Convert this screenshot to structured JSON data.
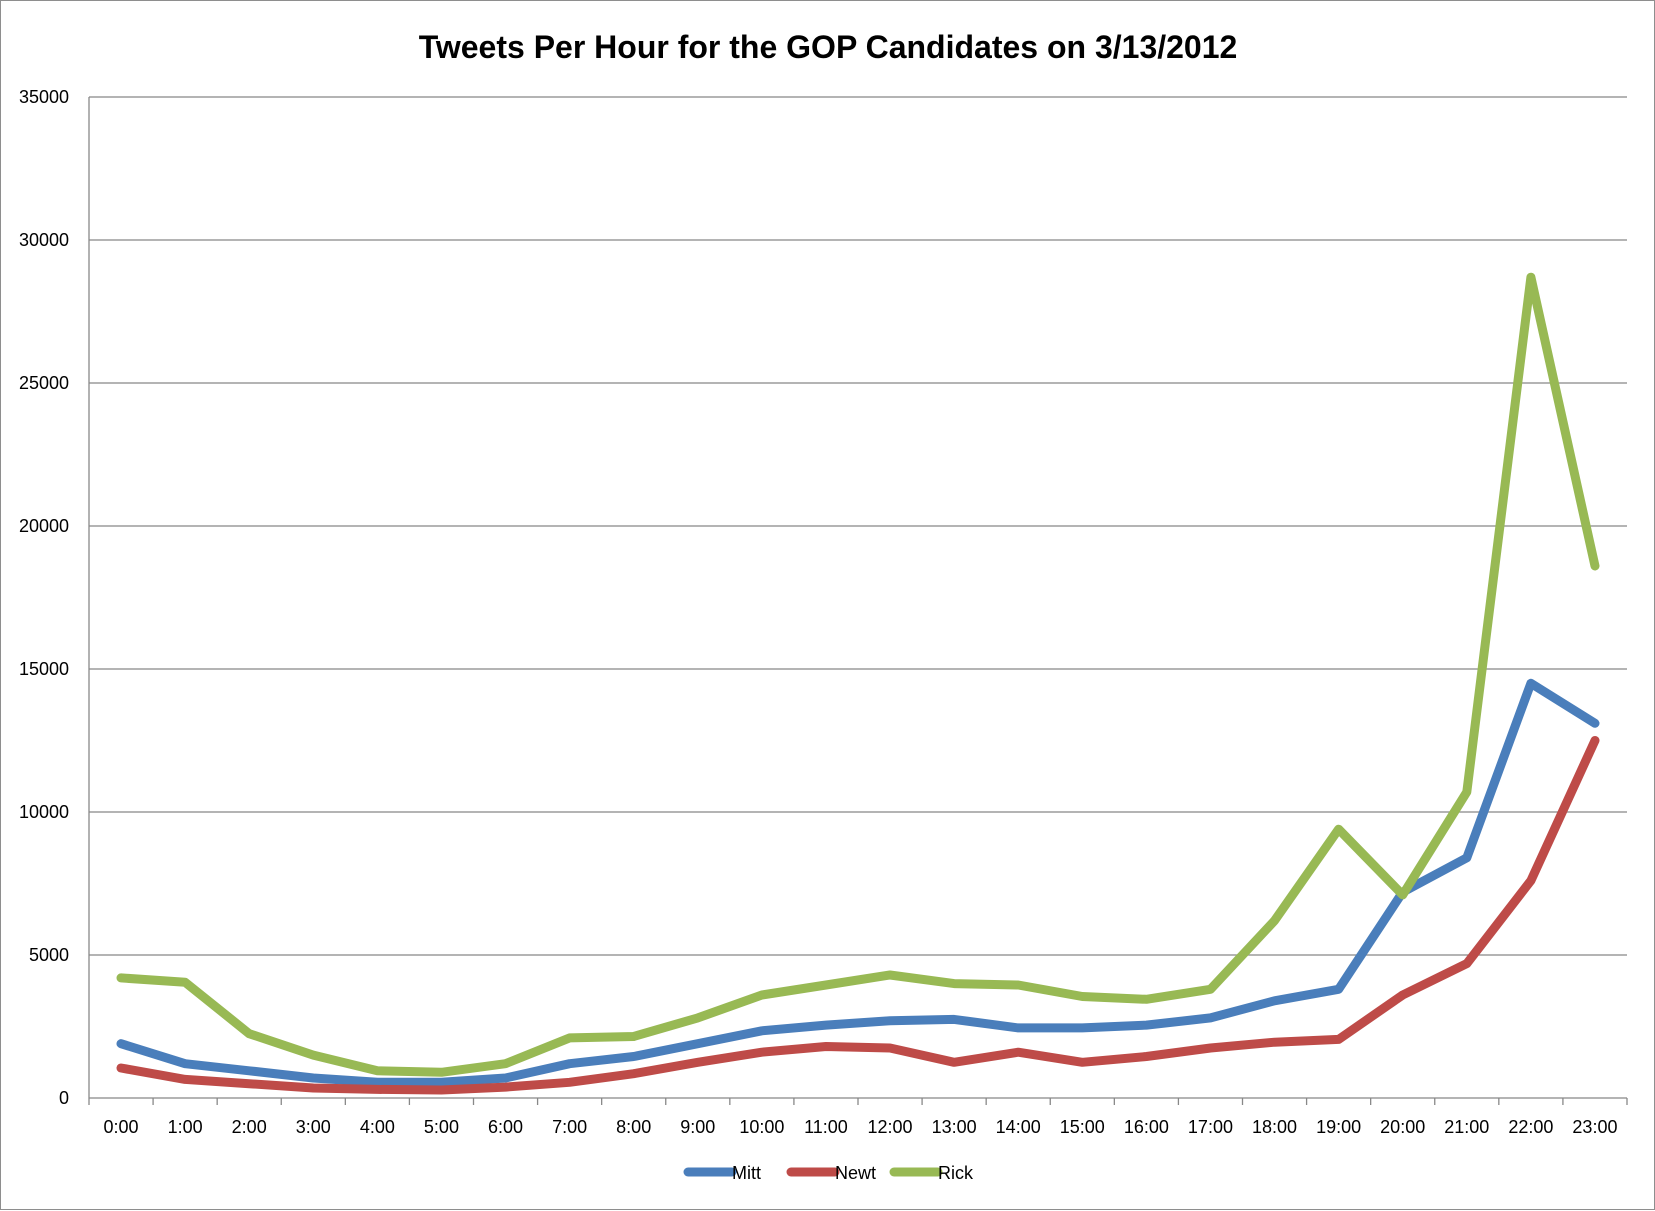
{
  "chart_data": {
    "type": "line",
    "title": "Tweets Per Hour for the GOP Candidates on 3/13/2012",
    "xlabel": "",
    "ylabel": "",
    "categories": [
      "0:00",
      "1:00",
      "2:00",
      "3:00",
      "4:00",
      "5:00",
      "6:00",
      "7:00",
      "8:00",
      "9:00",
      "10:00",
      "11:00",
      "12:00",
      "13:00",
      "14:00",
      "15:00",
      "16:00",
      "17:00",
      "18:00",
      "19:00",
      "20:00",
      "21:00",
      "22:00",
      "23:00"
    ],
    "ylim": [
      0,
      35000
    ],
    "yticks": [
      0,
      5000,
      10000,
      15000,
      20000,
      25000,
      30000,
      35000
    ],
    "grid": true,
    "legend_position": "bottom",
    "series": [
      {
        "name": "Mitt",
        "color": "#4a7ebb",
        "values": [
          1900,
          1200,
          950,
          700,
          550,
          550,
          700,
          1200,
          1450,
          1900,
          2350,
          2550,
          2700,
          2750,
          2450,
          2450,
          2550,
          2800,
          3400,
          3800,
          7200,
          8400,
          14500,
          13100
        ]
      },
      {
        "name": "Newt",
        "color": "#be4b48",
        "values": [
          1050,
          650,
          500,
          350,
          300,
          280,
          380,
          550,
          850,
          1250,
          1600,
          1800,
          1750,
          1250,
          1600,
          1250,
          1450,
          1750,
          1950,
          2050,
          3600,
          4700,
          7600,
          12500
        ]
      },
      {
        "name": "Rick",
        "color": "#98b954",
        "values": [
          4200,
          4050,
          2250,
          1500,
          950,
          900,
          1200,
          2100,
          2150,
          2800,
          3600,
          3950,
          4300,
          4000,
          3950,
          3550,
          3450,
          3800,
          6200,
          9400,
          7100,
          10700,
          28700,
          18600
        ]
      }
    ]
  }
}
